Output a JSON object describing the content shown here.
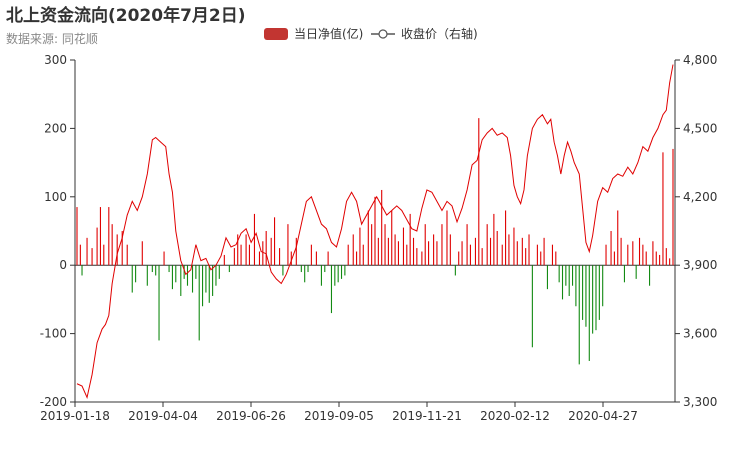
{
  "title": "北上资金流向(2020年7月2日)",
  "subtitle": "数据来源: 同花顺",
  "colors": {
    "positive_bar": "#e00000",
    "negative_bar": "#128a12",
    "line": "#e00000",
    "legend_bar": "#c23531",
    "axis": "#333333"
  },
  "chart_data": {
    "type": "bar",
    "title": "北上资金流向(2020年7月2日)",
    "subtitle": "数据来源: 同花顺",
    "legend": [
      "当日净值(亿)",
      "收盘价（右轴)"
    ],
    "legend_position": "top-center",
    "grid": false,
    "x_tick_labels": [
      "2019-01-18",
      "2019-04-04",
      "2019-06-26",
      "2019-09-05",
      "2019-11-21",
      "2020-02-12",
      "2020-04-27"
    ],
    "y_left": {
      "min": -200,
      "max": 300,
      "ticks": [
        -200,
        -100,
        0,
        100,
        200,
        300
      ]
    },
    "y_right": {
      "min": 3300,
      "max": 4800,
      "ticks": [
        "3,300",
        "3,600",
        "3,900",
        "4,200",
        "4,500",
        "4,800"
      ]
    },
    "n_days": 357,
    "bar_series": {
      "name": "当日净值(亿)",
      "sparse_values": [
        [
          0,
          85
        ],
        [
          2,
          30
        ],
        [
          3,
          -15
        ],
        [
          6,
          40
        ],
        [
          9,
          25
        ],
        [
          12,
          55
        ],
        [
          14,
          85
        ],
        [
          16,
          30
        ],
        [
          19,
          85
        ],
        [
          21,
          60
        ],
        [
          24,
          45
        ],
        [
          27,
          50
        ],
        [
          30,
          30
        ],
        [
          33,
          -40
        ],
        [
          35,
          -25
        ],
        [
          39,
          35
        ],
        [
          42,
          -30
        ],
        [
          45,
          -10
        ],
        [
          47,
          -15
        ],
        [
          49,
          -110
        ],
        [
          52,
          20
        ],
        [
          55,
          -10
        ],
        [
          57,
          -35
        ],
        [
          59,
          -25
        ],
        [
          62,
          -45
        ],
        [
          64,
          -20
        ],
        [
          66,
          -30
        ],
        [
          69,
          -40
        ],
        [
          71,
          -20
        ],
        [
          73,
          -110
        ],
        [
          75,
          -60
        ],
        [
          77,
          -40
        ],
        [
          79,
          -55
        ],
        [
          81,
          -45
        ],
        [
          83,
          -30
        ],
        [
          85,
          -20
        ],
        [
          88,
          15
        ],
        [
          91,
          -10
        ],
        [
          94,
          25
        ],
        [
          96,
          45
        ],
        [
          98,
          30
        ],
        [
          101,
          45
        ],
        [
          103,
          30
        ],
        [
          106,
          75
        ],
        [
          109,
          20
        ],
        [
          111,
          35
        ],
        [
          113,
          50
        ],
        [
          116,
          40
        ],
        [
          118,
          70
        ],
        [
          121,
          25
        ],
        [
          123,
          -15
        ],
        [
          126,
          60
        ],
        [
          128,
          20
        ],
        [
          131,
          40
        ],
        [
          134,
          -10
        ],
        [
          136,
          -25
        ],
        [
          138,
          -10
        ],
        [
          140,
          30
        ],
        [
          143,
          20
        ],
        [
          146,
          -30
        ],
        [
          148,
          -10
        ],
        [
          150,
          20
        ],
        [
          152,
          -70
        ],
        [
          154,
          -30
        ],
        [
          156,
          -25
        ],
        [
          158,
          -20
        ],
        [
          160,
          -15
        ],
        [
          162,
          30
        ],
        [
          165,
          45
        ],
        [
          167,
          20
        ],
        [
          169,
          55
        ],
        [
          171,
          30
        ],
        [
          174,
          80
        ],
        [
          176,
          60
        ],
        [
          178,
          100
        ],
        [
          180,
          40
        ],
        [
          182,
          110
        ],
        [
          184,
          60
        ],
        [
          186,
          40
        ],
        [
          188,
          80
        ],
        [
          190,
          45
        ],
        [
          192,
          35
        ],
        [
          195,
          55
        ],
        [
          197,
          30
        ],
        [
          199,
          75
        ],
        [
          201,
          40
        ],
        [
          203,
          25
        ],
        [
          206,
          20
        ],
        [
          208,
          60
        ],
        [
          210,
          35
        ],
        [
          213,
          45
        ],
        [
          215,
          35
        ],
        [
          218,
          60
        ],
        [
          221,
          80
        ],
        [
          223,
          45
        ],
        [
          226,
          -15
        ],
        [
          228,
          20
        ],
        [
          230,
          35
        ],
        [
          233,
          60
        ],
        [
          235,
          30
        ],
        [
          238,
          40
        ],
        [
          240,
          215
        ],
        [
          242,
          25
        ],
        [
          245,
          60
        ],
        [
          247,
          40
        ],
        [
          249,
          75
        ],
        [
          251,
          50
        ],
        [
          254,
          30
        ],
        [
          256,
          80
        ],
        [
          258,
          45
        ],
        [
          261,
          55
        ],
        [
          263,
          35
        ],
        [
          266,
          40
        ],
        [
          268,
          25
        ],
        [
          270,
          45
        ],
        [
          272,
          -120
        ],
        [
          275,
          30
        ],
        [
          277,
          20
        ],
        [
          279,
          40
        ],
        [
          281,
          -35
        ],
        [
          284,
          30
        ],
        [
          286,
          20
        ],
        [
          288,
          -25
        ],
        [
          290,
          -50
        ],
        [
          292,
          -30
        ],
        [
          294,
          -45
        ],
        [
          296,
          -30
        ],
        [
          298,
          -60
        ],
        [
          300,
          -145
        ],
        [
          302,
          -80
        ],
        [
          304,
          -90
        ],
        [
          306,
          -140
        ],
        [
          308,
          -100
        ],
        [
          310,
          -95
        ],
        [
          312,
          -80
        ],
        [
          314,
          -60
        ],
        [
          316,
          30
        ],
        [
          319,
          50
        ],
        [
          321,
          20
        ],
        [
          323,
          80
        ],
        [
          325,
          40
        ],
        [
          327,
          -25
        ],
        [
          329,
          30
        ],
        [
          332,
          35
        ],
        [
          334,
          -20
        ],
        [
          336,
          40
        ],
        [
          338,
          30
        ],
        [
          340,
          20
        ],
        [
          342,
          -30
        ],
        [
          344,
          35
        ],
        [
          346,
          20
        ],
        [
          348,
          15
        ],
        [
          350,
          165
        ],
        [
          352,
          25
        ],
        [
          354,
          10
        ],
        [
          356,
          170
        ]
      ]
    },
    "line_series": {
      "name": "收盘价（右轴)",
      "anchors": [
        [
          0,
          3380
        ],
        [
          3,
          3370
        ],
        [
          6,
          3320
        ],
        [
          9,
          3420
        ],
        [
          12,
          3560
        ],
        [
          15,
          3620
        ],
        [
          17,
          3640
        ],
        [
          19,
          3680
        ],
        [
          21,
          3820
        ],
        [
          24,
          3950
        ],
        [
          27,
          4020
        ],
        [
          30,
          4120
        ],
        [
          33,
          4180
        ],
        [
          36,
          4140
        ],
        [
          39,
          4200
        ],
        [
          42,
          4300
        ],
        [
          45,
          4450
        ],
        [
          47,
          4460
        ],
        [
          50,
          4440
        ],
        [
          53,
          4420
        ],
        [
          55,
          4300
        ],
        [
          57,
          4220
        ],
        [
          59,
          4050
        ],
        [
          62,
          3920
        ],
        [
          65,
          3860
        ],
        [
          68,
          3880
        ],
        [
          71,
          3990
        ],
        [
          74,
          3920
        ],
        [
          77,
          3930
        ],
        [
          80,
          3880
        ],
        [
          83,
          3900
        ],
        [
          86,
          3940
        ],
        [
          89,
          4020
        ],
        [
          92,
          3980
        ],
        [
          95,
          3990
        ],
        [
          98,
          4040
        ],
        [
          101,
          4060
        ],
        [
          104,
          4000
        ],
        [
          107,
          4040
        ],
        [
          110,
          3960
        ],
        [
          113,
          3950
        ],
        [
          116,
          3870
        ],
        [
          119,
          3840
        ],
        [
          122,
          3820
        ],
        [
          125,
          3860
        ],
        [
          128,
          3920
        ],
        [
          131,
          3980
        ],
        [
          134,
          4080
        ],
        [
          137,
          4180
        ],
        [
          140,
          4200
        ],
        [
          143,
          4140
        ],
        [
          146,
          4080
        ],
        [
          149,
          4060
        ],
        [
          152,
          4000
        ],
        [
          155,
          3980
        ],
        [
          158,
          4060
        ],
        [
          161,
          4180
        ],
        [
          164,
          4220
        ],
        [
          167,
          4180
        ],
        [
          170,
          4080
        ],
        [
          173,
          4120
        ],
        [
          176,
          4160
        ],
        [
          179,
          4200
        ],
        [
          182,
          4160
        ],
        [
          185,
          4120
        ],
        [
          188,
          4140
        ],
        [
          191,
          4160
        ],
        [
          194,
          4140
        ],
        [
          197,
          4100
        ],
        [
          200,
          4060
        ],
        [
          203,
          4050
        ],
        [
          206,
          4150
        ],
        [
          209,
          4230
        ],
        [
          212,
          4220
        ],
        [
          215,
          4180
        ],
        [
          218,
          4140
        ],
        [
          221,
          4180
        ],
        [
          224,
          4160
        ],
        [
          227,
          4090
        ],
        [
          230,
          4150
        ],
        [
          233,
          4230
        ],
        [
          236,
          4340
        ],
        [
          239,
          4360
        ],
        [
          242,
          4450
        ],
        [
          245,
          4480
        ],
        [
          248,
          4500
        ],
        [
          251,
          4470
        ],
        [
          254,
          4480
        ],
        [
          257,
          4460
        ],
        [
          259,
          4380
        ],
        [
          261,
          4250
        ],
        [
          263,
          4200
        ],
        [
          265,
          4170
        ],
        [
          267,
          4230
        ],
        [
          269,
          4380
        ],
        [
          272,
          4500
        ],
        [
          275,
          4540
        ],
        [
          278,
          4560
        ],
        [
          281,
          4520
        ],
        [
          283,
          4540
        ],
        [
          285,
          4440
        ],
        [
          287,
          4380
        ],
        [
          289,
          4300
        ],
        [
          291,
          4380
        ],
        [
          293,
          4440
        ],
        [
          295,
          4400
        ],
        [
          297,
          4350
        ],
        [
          300,
          4300
        ],
        [
          302,
          4150
        ],
        [
          304,
          4000
        ],
        [
          306,
          3960
        ],
        [
          308,
          4030
        ],
        [
          311,
          4180
        ],
        [
          314,
          4240
        ],
        [
          317,
          4220
        ],
        [
          320,
          4280
        ],
        [
          323,
          4300
        ],
        [
          326,
          4290
        ],
        [
          329,
          4330
        ],
        [
          332,
          4300
        ],
        [
          335,
          4350
        ],
        [
          338,
          4420
        ],
        [
          341,
          4400
        ],
        [
          344,
          4460
        ],
        [
          347,
          4500
        ],
        [
          350,
          4560
        ],
        [
          352,
          4580
        ],
        [
          354,
          4700
        ],
        [
          356,
          4780
        ]
      ]
    }
  }
}
